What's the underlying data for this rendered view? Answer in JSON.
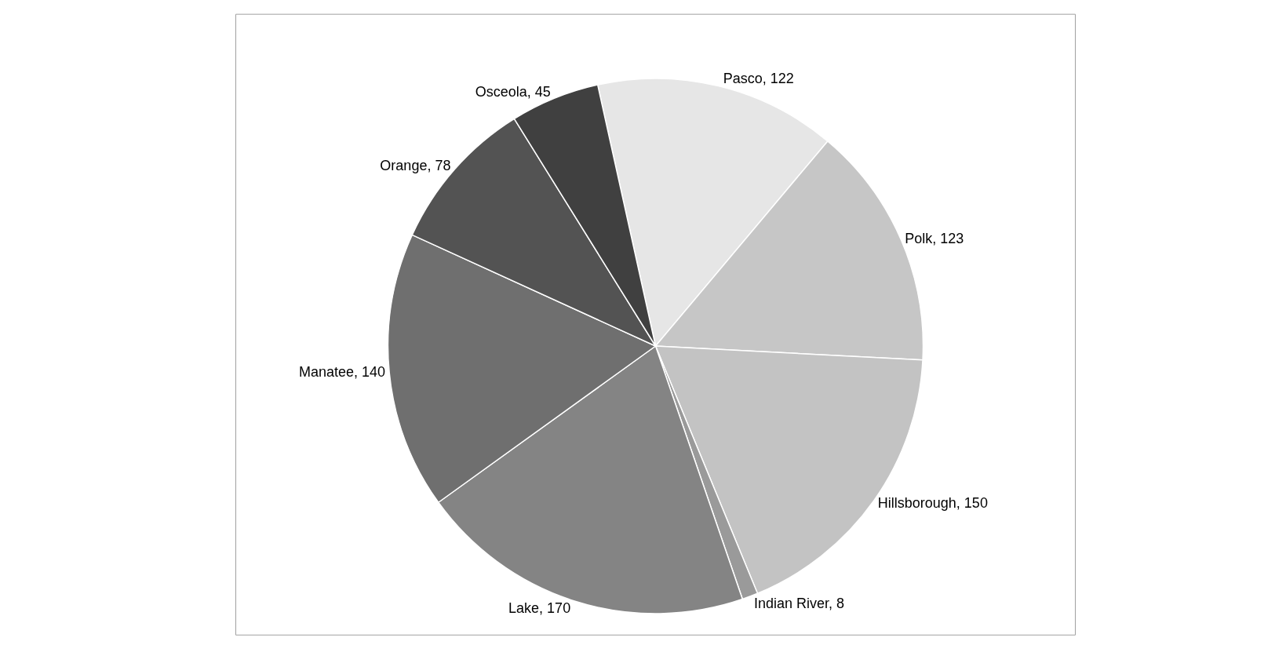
{
  "chart_data": {
    "type": "pie",
    "categories": [
      "Pasco, 122",
      "Polk, 123",
      "Hillsborough, 150",
      "Indian River, 8",
      "Lake, 170",
      "Manatee, 140",
      "Orange, 78",
      "Osceola, 45"
    ],
    "values": [
      122,
      123,
      150,
      8,
      170,
      140,
      78,
      45
    ],
    "colors": [
      "#e6e6e6",
      "#c6c6c6",
      "#c3c3c3",
      "#9a9a9a",
      "#848484",
      "#6f6f6f",
      "#535353",
      "#404040"
    ]
  }
}
